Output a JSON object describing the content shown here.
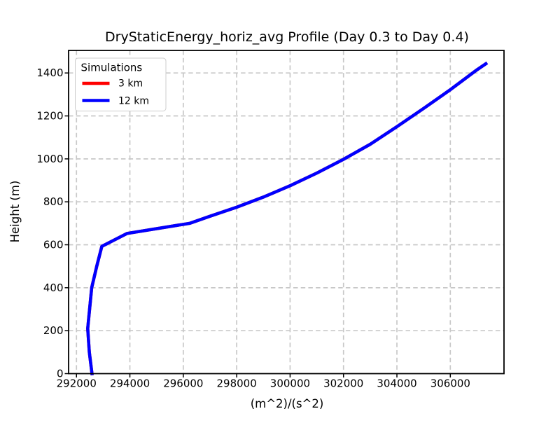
{
  "chart_data": {
    "type": "line",
    "title": "DryStaticEnergy_horiz_avg Profile (Day 0.3 to Day 0.4)",
    "xlabel": "(m^2)/(s^2)",
    "ylabel": "Height (m)",
    "xlim": [
      291705,
      308010
    ],
    "ylim": [
      0,
      1505
    ],
    "xticks": [
      292000,
      294000,
      296000,
      298000,
      300000,
      302000,
      304000,
      306000
    ],
    "yticks": [
      0,
      200,
      400,
      600,
      800,
      1000,
      1200,
      1400
    ],
    "grid": true,
    "grid_style": "dashed",
    "grid_color": "#c8c8c8",
    "background_color": "#ffffff",
    "legend": {
      "title": "Simulations",
      "position": "upper left",
      "entries": [
        {
          "label": "3 km",
          "color": "#ff0000"
        },
        {
          "label": "12 km",
          "color": "#0000ff"
        }
      ]
    },
    "series": [
      {
        "name": "3 km",
        "color": "#ff0000",
        "note": "line is almost completely hidden beneath the 12 km line (identical profile)",
        "points": [
          [
            292580,
            0
          ],
          [
            292480,
            100
          ],
          [
            292420,
            210
          ],
          [
            292500,
            310
          ],
          [
            292570,
            400
          ],
          [
            292760,
            500
          ],
          [
            292950,
            593
          ],
          [
            293900,
            653
          ],
          [
            296250,
            700
          ],
          [
            297000,
            733
          ],
          [
            298000,
            775
          ],
          [
            299000,
            822
          ],
          [
            300000,
            875
          ],
          [
            301000,
            934
          ],
          [
            302000,
            998
          ],
          [
            303000,
            1068
          ],
          [
            304000,
            1150
          ],
          [
            305000,
            1235
          ],
          [
            306000,
            1322
          ],
          [
            307000,
            1415
          ],
          [
            307330,
            1443
          ]
        ]
      },
      {
        "name": "12 km",
        "color": "#0000ff",
        "points": [
          [
            292580,
            0
          ],
          [
            292480,
            100
          ],
          [
            292420,
            210
          ],
          [
            292500,
            310
          ],
          [
            292570,
            400
          ],
          [
            292760,
            500
          ],
          [
            292950,
            593
          ],
          [
            293900,
            653
          ],
          [
            296250,
            700
          ],
          [
            297000,
            733
          ],
          [
            298000,
            775
          ],
          [
            299000,
            822
          ],
          [
            300000,
            875
          ],
          [
            301000,
            934
          ],
          [
            302000,
            998
          ],
          [
            303000,
            1068
          ],
          [
            304000,
            1150
          ],
          [
            305000,
            1235
          ],
          [
            306000,
            1322
          ],
          [
            307000,
            1415
          ],
          [
            307330,
            1443
          ]
        ]
      }
    ]
  }
}
